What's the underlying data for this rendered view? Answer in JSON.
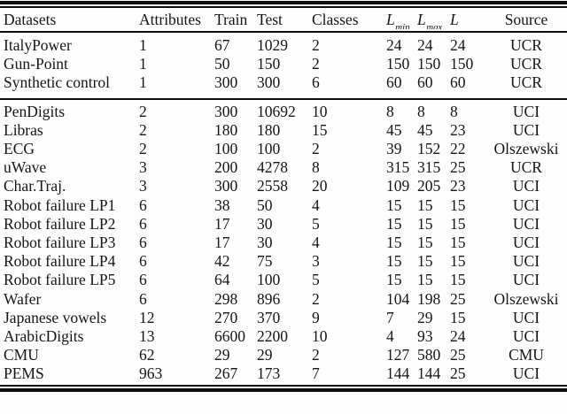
{
  "table": {
    "columns": [
      {
        "key": "dataset",
        "label": "Datasets"
      },
      {
        "key": "attributes",
        "label": "Attributes"
      },
      {
        "key": "train",
        "label": "Train"
      },
      {
        "key": "test",
        "label": "Test"
      },
      {
        "key": "classes",
        "label": "Classes"
      },
      {
        "key": "lmin",
        "label": "L",
        "sub": "min",
        "italic": true
      },
      {
        "key": "lmax",
        "label": "L",
        "sub": "max",
        "italic": true
      },
      {
        "key": "l",
        "label": "L",
        "italic": true
      },
      {
        "key": "source",
        "label": "Source"
      }
    ],
    "groups": [
      {
        "rows": [
          {
            "dataset": "ItalyPower",
            "attributes": "1",
            "train": "67",
            "test": "1029",
            "classes": "2",
            "lmin": "24",
            "lmax": "24",
            "l": "24",
            "source": "UCR"
          },
          {
            "dataset": "Gun-Point",
            "attributes": "1",
            "train": "50",
            "test": "150",
            "classes": "2",
            "lmin": "150",
            "lmax": "150",
            "l": "150",
            "source": "UCR"
          },
          {
            "dataset": "Synthetic control",
            "attributes": "1",
            "train": "300",
            "test": "300",
            "classes": "6",
            "lmin": "60",
            "lmax": "60",
            "l": "60",
            "source": "UCR"
          }
        ]
      },
      {
        "rows": [
          {
            "dataset": "PenDigits",
            "attributes": "2",
            "train": "300",
            "test": "10692",
            "classes": "10",
            "lmin": "8",
            "lmax": "8",
            "l": "8",
            "source": "UCI"
          },
          {
            "dataset": "Libras",
            "attributes": "2",
            "train": "180",
            "test": "180",
            "classes": "15",
            "lmin": "45",
            "lmax": "45",
            "l": "23",
            "source": "UCI"
          },
          {
            "dataset": "ECG",
            "attributes": "2",
            "train": "100",
            "test": "100",
            "classes": "2",
            "lmin": "39",
            "lmax": "152",
            "l": "22",
            "source": "Olszewski"
          },
          {
            "dataset": "uWave",
            "attributes": "3",
            "train": "200",
            "test": "4278",
            "classes": "8",
            "lmin": "315",
            "lmax": "315",
            "l": "25",
            "source": "UCR"
          },
          {
            "dataset": "Char.Traj.",
            "attributes": "3",
            "train": "300",
            "test": "2558",
            "classes": "20",
            "lmin": "109",
            "lmax": "205",
            "l": "23",
            "source": "UCI"
          },
          {
            "dataset": "Robot failure LP1",
            "attributes": "6",
            "train": "38",
            "test": "50",
            "classes": "4",
            "lmin": "15",
            "lmax": "15",
            "l": "15",
            "source": "UCI"
          },
          {
            "dataset": "Robot failure LP2",
            "attributes": "6",
            "train": "17",
            "test": "30",
            "classes": "5",
            "lmin": "15",
            "lmax": "15",
            "l": "15",
            "source": "UCI"
          },
          {
            "dataset": "Robot failure LP3",
            "attributes": "6",
            "train": "17",
            "test": "30",
            "classes": "4",
            "lmin": "15",
            "lmax": "15",
            "l": "15",
            "source": "UCI"
          },
          {
            "dataset": "Robot failure LP4",
            "attributes": "6",
            "train": "42",
            "test": "75",
            "classes": "3",
            "lmin": "15",
            "lmax": "15",
            "l": "15",
            "source": "UCI"
          },
          {
            "dataset": "Robot failure LP5",
            "attributes": "6",
            "train": "64",
            "test": "100",
            "classes": "5",
            "lmin": "15",
            "lmax": "15",
            "l": "15",
            "source": "UCI"
          },
          {
            "dataset": "Wafer",
            "attributes": "6",
            "train": "298",
            "test": "896",
            "classes": "2",
            "lmin": "104",
            "lmax": "198",
            "l": "25",
            "source": "Olszewski"
          },
          {
            "dataset": "Japanese vowels",
            "attributes": "12",
            "train": "270",
            "test": "370",
            "classes": "9",
            "lmin": "7",
            "lmax": "29",
            "l": "15",
            "source": "UCI"
          },
          {
            "dataset": "ArabicDigits",
            "attributes": "13",
            "train": "6600",
            "test": "2200",
            "classes": "10",
            "lmin": "4",
            "lmax": "93",
            "l": "24",
            "source": "UCI"
          },
          {
            "dataset": "CMU",
            "attributes": "62",
            "train": "29",
            "test": "29",
            "classes": "2",
            "lmin": "127",
            "lmax": "580",
            "l": "25",
            "source": "CMU"
          },
          {
            "dataset": "PEMS",
            "attributes": "963",
            "train": "267",
            "test": "173",
            "classes": "7",
            "lmin": "144",
            "lmax": "144",
            "l": "25",
            "source": "UCI"
          }
        ]
      }
    ]
  }
}
